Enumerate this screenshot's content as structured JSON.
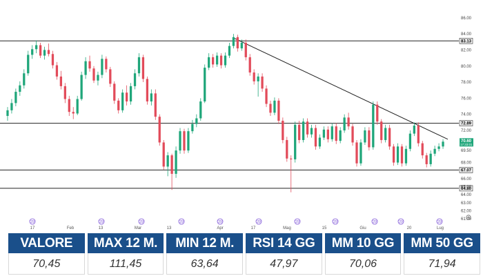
{
  "chart_data": {
    "type": "candlestick",
    "y_ticks": [
      "86.00",
      "84.00",
      "82.00",
      "80.00",
      "78.00",
      "76.00",
      "74.00",
      "72.00",
      "69.50",
      "68.00",
      "66.00",
      "65.00",
      "64.00",
      "63.00",
      "62.00",
      "61.00"
    ],
    "y_tick_values": [
      86,
      84,
      82,
      80,
      78,
      76,
      74,
      72,
      69.5,
      68,
      66,
      65,
      64,
      63,
      62,
      61
    ],
    "x_ticks": [
      "17",
      "Feb",
      "13",
      "Mar",
      "13",
      "Apr",
      "17",
      "Mag",
      "15",
      "Giu",
      "20",
      "Lug"
    ],
    "ylim": [
      60.5,
      86.5
    ],
    "horizontal_levels": [
      {
        "label": "83.13",
        "value": 83.13
      },
      {
        "label": "72.89",
        "value": 72.89
      },
      {
        "label": "67.07",
        "value": 67.07
      },
      {
        "label": "64.80",
        "value": 64.8
      }
    ],
    "price_tag": {
      "value": "70.60",
      "time": "17:33:01",
      "level": 70.6
    },
    "events": [
      "29",
      "29",
      "29",
      "29",
      "29",
      "29",
      "29",
      "29",
      "29",
      "29",
      "29"
    ],
    "trendline": {
      "start_value": 83.5,
      "end_value": 70.9
    },
    "candles": [
      [
        73.8,
        74.9,
        73.2,
        74.5
      ],
      [
        74.5,
        75.9,
        74.1,
        75.4
      ],
      [
        75.4,
        77.2,
        75.0,
        76.8
      ],
      [
        76.8,
        78.1,
        76.3,
        77.6
      ],
      [
        77.6,
        79.6,
        77.2,
        79.1
      ],
      [
        79.1,
        81.9,
        78.8,
        81.4
      ],
      [
        81.4,
        82.6,
        80.9,
        82.1
      ],
      [
        82.1,
        83.2,
        81.6,
        82.6
      ],
      [
        82.6,
        82.9,
        81.0,
        81.3
      ],
      [
        81.3,
        82.4,
        80.8,
        82.0
      ],
      [
        82.0,
        82.8,
        81.2,
        81.5
      ],
      [
        81.5,
        81.9,
        79.7,
        80.1
      ],
      [
        80.1,
        80.5,
        78.3,
        78.7
      ],
      [
        78.7,
        79.4,
        77.1,
        77.5
      ],
      [
        77.5,
        77.9,
        75.4,
        75.9
      ],
      [
        75.9,
        76.3,
        73.8,
        74.3
      ],
      [
        74.3,
        74.9,
        73.4,
        74.1
      ],
      [
        74.1,
        76.3,
        73.9,
        75.9
      ],
      [
        75.9,
        79.3,
        75.7,
        78.9
      ],
      [
        78.9,
        81.1,
        78.4,
        80.6
      ],
      [
        80.6,
        81.3,
        79.3,
        79.7
      ],
      [
        79.7,
        80.0,
        77.9,
        78.2
      ],
      [
        78.2,
        79.3,
        77.6,
        78.9
      ],
      [
        78.9,
        81.4,
        78.5,
        80.9
      ],
      [
        80.9,
        81.2,
        79.2,
        79.6
      ],
      [
        79.6,
        79.9,
        77.4,
        77.8
      ],
      [
        77.8,
        78.1,
        75.3,
        75.7
      ],
      [
        75.7,
        76.0,
        74.1,
        74.5
      ],
      [
        74.5,
        77.1,
        74.2,
        76.7
      ],
      [
        76.7,
        77.6,
        75.1,
        75.6
      ],
      [
        75.6,
        77.9,
        75.2,
        77.5
      ],
      [
        77.5,
        79.6,
        77.1,
        79.1
      ],
      [
        79.1,
        81.6,
        78.7,
        81.1
      ],
      [
        81.1,
        81.4,
        78.0,
        78.4
      ],
      [
        78.4,
        78.7,
        75.2,
        75.6
      ],
      [
        75.6,
        77.1,
        75.1,
        76.6
      ],
      [
        76.6,
        77.1,
        73.3,
        73.7
      ],
      [
        73.7,
        74.0,
        70.1,
        70.5
      ],
      [
        70.5,
        70.8,
        67.1,
        67.5
      ],
      [
        67.5,
        69.3,
        66.3,
        68.9
      ],
      [
        68.9,
        69.1,
        64.6,
        66.6
      ],
      [
        66.6,
        70.0,
        66.1,
        69.5
      ],
      [
        69.5,
        72.3,
        69.1,
        71.9
      ],
      [
        71.9,
        72.2,
        69.1,
        69.5
      ],
      [
        69.5,
        72.3,
        69.2,
        71.9
      ],
      [
        71.9,
        73.3,
        71.6,
        72.8
      ],
      [
        72.8,
        74.0,
        72.4,
        73.5
      ],
      [
        73.5,
        76.0,
        73.2,
        75.6
      ],
      [
        75.6,
        80.2,
        75.4,
        79.8
      ],
      [
        79.8,
        81.6,
        79.5,
        81.1
      ],
      [
        81.1,
        81.5,
        79.8,
        80.2
      ],
      [
        80.2,
        81.7,
        79.9,
        81.3
      ],
      [
        81.3,
        81.6,
        79.7,
        80.1
      ],
      [
        80.1,
        81.7,
        79.8,
        81.3
      ],
      [
        81.3,
        82.9,
        81.0,
        82.5
      ],
      [
        82.5,
        84.0,
        82.2,
        83.6
      ],
      [
        83.6,
        83.9,
        81.8,
        82.2
      ],
      [
        82.2,
        83.3,
        81.9,
        82.9
      ],
      [
        82.9,
        83.3,
        80.7,
        81.1
      ],
      [
        81.1,
        81.5,
        78.8,
        79.2
      ],
      [
        79.2,
        79.6,
        77.7,
        78.1
      ],
      [
        78.1,
        79.1,
        76.2,
        78.7
      ],
      [
        78.7,
        79.1,
        76.8,
        77.2
      ],
      [
        77.2,
        77.6,
        74.9,
        75.3
      ],
      [
        75.3,
        75.7,
        73.8,
        74.2
      ],
      [
        74.2,
        76.1,
        73.9,
        75.7
      ],
      [
        75.7,
        76.0,
        72.8,
        73.2
      ],
      [
        73.2,
        73.6,
        70.4,
        70.8
      ],
      [
        70.8,
        71.2,
        68.1,
        68.5
      ],
      [
        68.5,
        68.9,
        64.3,
        68.4
      ],
      [
        68.4,
        73.1,
        68.0,
        72.7
      ],
      [
        72.7,
        73.2,
        70.4,
        70.8
      ],
      [
        70.8,
        73.5,
        70.5,
        73.1
      ],
      [
        73.1,
        73.5,
        71.1,
        71.5
      ],
      [
        71.5,
        72.7,
        71.1,
        72.3
      ],
      [
        72.3,
        72.7,
        69.6,
        70.0
      ],
      [
        70.0,
        71.5,
        69.7,
        71.1
      ],
      [
        71.1,
        72.5,
        70.8,
        72.1
      ],
      [
        72.1,
        72.5,
        70.5,
        70.9
      ],
      [
        70.9,
        72.9,
        70.6,
        72.5
      ],
      [
        72.5,
        72.9,
        70.3,
        70.7
      ],
      [
        70.7,
        72.4,
        70.4,
        72.0
      ],
      [
        72.0,
        74.0,
        71.7,
        73.6
      ],
      [
        73.6,
        74.2,
        72.1,
        72.5
      ],
      [
        72.5,
        72.8,
        70.1,
        70.5
      ],
      [
        70.5,
        70.8,
        67.5,
        67.9
      ],
      [
        67.9,
        70.9,
        67.6,
        70.5
      ],
      [
        70.5,
        72.4,
        70.2,
        72.0
      ],
      [
        72.0,
        72.4,
        69.5,
        69.9
      ],
      [
        69.9,
        75.6,
        69.6,
        75.2
      ],
      [
        75.2,
        75.6,
        72.7,
        73.1
      ],
      [
        73.1,
        73.4,
        70.4,
        70.8
      ],
      [
        70.8,
        72.7,
        70.5,
        72.3
      ],
      [
        72.3,
        72.7,
        69.6,
        70.0
      ],
      [
        70.0,
        70.3,
        67.6,
        68.0
      ],
      [
        68.0,
        70.4,
        67.7,
        70.0
      ],
      [
        70.0,
        70.3,
        67.5,
        67.9
      ],
      [
        67.9,
        70.1,
        67.6,
        69.7
      ],
      [
        69.7,
        72.0,
        69.4,
        71.6
      ],
      [
        71.6,
        73.0,
        71.3,
        72.6
      ],
      [
        72.6,
        73.0,
        70.0,
        70.4
      ],
      [
        70.4,
        70.7,
        68.5,
        68.9
      ],
      [
        68.9,
        69.2,
        67.4,
        67.8
      ],
      [
        67.8,
        69.5,
        67.5,
        69.1
      ],
      [
        69.1,
        70.1,
        68.8,
        69.7
      ],
      [
        69.7,
        70.4,
        69.4,
        70.0
      ],
      [
        70.0,
        70.9,
        69.7,
        70.6
      ]
    ]
  },
  "stats": [
    {
      "label": "VALORE",
      "value": "70,45"
    },
    {
      "label": "MAX 12 M.",
      "value": "111,45"
    },
    {
      "label": "MIN 12 M.",
      "value": "63,64"
    },
    {
      "label": "RSI 14 GG",
      "value": "47,97"
    },
    {
      "label": "MM 10 GG",
      "value": "70,06"
    },
    {
      "label": "MM 50 GG",
      "value": "71,94"
    }
  ],
  "colors": {
    "up": "#1fa67a",
    "down": "#e24b5a",
    "header": "#1a4f8a",
    "event": "#7a4fd6"
  },
  "icons": [
    "zoom-icon"
  ]
}
